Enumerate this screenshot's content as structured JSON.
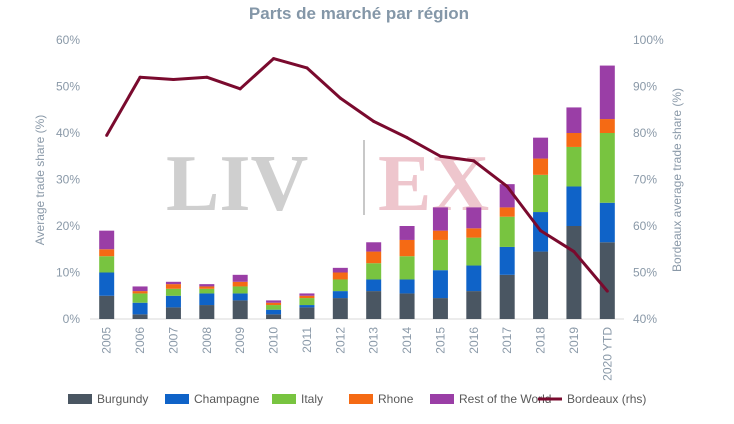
{
  "chart_data": {
    "type": "bar",
    "title": "Parts de marché par région",
    "categories": [
      "2005",
      "2006",
      "2007",
      "2008",
      "2009",
      "2010",
      "2011",
      "2012",
      "2013",
      "2014",
      "2015",
      "2016",
      "2017",
      "2018",
      "2019",
      "2020 YTD"
    ],
    "series": [
      {
        "name": "Burgundy",
        "color": "#4a5662",
        "values": [
          5.0,
          1.0,
          2.5,
          3.0,
          4.0,
          1.0,
          2.5,
          4.5,
          6.0,
          5.5,
          4.5,
          6.0,
          9.5,
          14.5,
          20.0,
          16.5
        ]
      },
      {
        "name": "Champagne",
        "color": "#0f63c8",
        "values": [
          5.0,
          2.5,
          2.5,
          2.5,
          1.5,
          1.0,
          0.5,
          1.5,
          2.5,
          3.0,
          6.0,
          5.5,
          6.0,
          8.5,
          8.5,
          8.5
        ]
      },
      {
        "name": "Italy",
        "color": "#78c440",
        "values": [
          3.5,
          2.0,
          1.5,
          1.0,
          1.5,
          1.0,
          1.5,
          2.5,
          3.5,
          5.0,
          6.5,
          6.0,
          6.5,
          8.0,
          8.5,
          15.0
        ]
      },
      {
        "name": "Rhone",
        "color": "#f56a14",
        "values": [
          1.5,
          0.5,
          1.0,
          0.5,
          1.0,
          0.5,
          0.5,
          1.5,
          2.5,
          3.5,
          2.0,
          2.0,
          2.0,
          3.5,
          3.0,
          3.0
        ]
      },
      {
        "name": "Rest of the World",
        "color": "#9a3ea6",
        "values": [
          4.0,
          1.0,
          0.5,
          0.5,
          1.5,
          0.5,
          0.5,
          1.0,
          2.0,
          3.0,
          5.0,
          4.5,
          5.0,
          4.5,
          5.5,
          11.5
        ]
      },
      {
        "name": "Bordeaux (rhs)",
        "color": "#7a0a2e",
        "type": "line",
        "axis": "right",
        "values": [
          79.5,
          92.0,
          91.5,
          92.0,
          89.5,
          96.0,
          94.0,
          87.5,
          82.5,
          79.0,
          75.0,
          74.0,
          68.5,
          59.0,
          54.5,
          46.0
        ]
      }
    ],
    "ylabel": "Average trade share (%)",
    "ylabel_right": "Bordeaux average trade share (%)",
    "ylim": [
      0,
      60
    ],
    "ylim_right": [
      40,
      100
    ],
    "yticks": [
      "0%",
      "10%",
      "20%",
      "30%",
      "40%",
      "50%",
      "60%"
    ],
    "yticks_right": [
      "40%",
      "50%",
      "60%",
      "70%",
      "80%",
      "90%",
      "100%"
    ],
    "grid": false,
    "legend": "bottom"
  },
  "watermark": {
    "left": "LIV",
    "right": "EX",
    "left_color": "#cfcfcf",
    "right_color": "#eec6cd"
  }
}
